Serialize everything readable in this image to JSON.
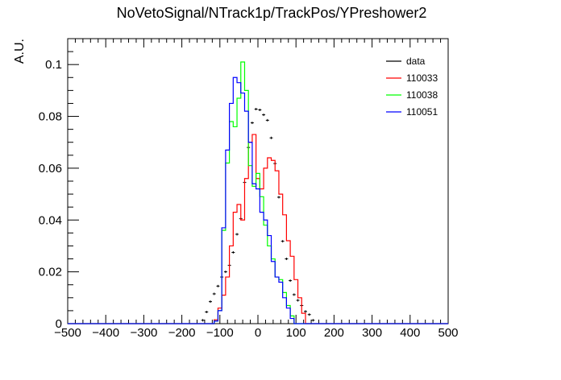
{
  "chart_data": {
    "type": "histogram",
    "title": "NoVetoSignal/NTrack1p/TrackPos/YPreshower2",
    "xlabel": "",
    "ylabel": "A.U.",
    "xlim": [
      -500,
      500
    ],
    "ylim": [
      0,
      0.11
    ],
    "bin_width": 10,
    "x_ticks": [
      "−500",
      "−400",
      "−300",
      "−200",
      "−100",
      "0",
      "100",
      "200",
      "300",
      "400",
      "500"
    ],
    "y_ticks": [
      "0",
      "0.02",
      "0.04",
      "0.06",
      "0.08",
      "0.1"
    ],
    "legend_position": "top-right",
    "grid": false,
    "series": [
      {
        "name": "data",
        "color": "#000000",
        "style": "points",
        "x": [
          -145,
          -135,
          -125,
          -115,
          -105,
          -95,
          -85,
          -75,
          -65,
          -55,
          -45,
          -35,
          -25,
          -15,
          -5,
          5,
          15,
          25,
          35,
          45,
          55,
          65,
          75,
          85,
          95,
          105,
          115,
          125,
          135,
          145
        ],
        "values": [
          0.0013,
          0.0045,
          0.0085,
          0.0115,
          0.0145,
          0.018,
          0.02,
          0.0225,
          0.0275,
          0.0345,
          0.0405,
          0.0545,
          0.068,
          0.0775,
          0.0828,
          0.0825,
          0.0806,
          0.0785,
          0.0717,
          0.0618,
          0.0488,
          0.0318,
          0.025,
          0.0166,
          0.0112,
          0.009,
          0.007,
          0.0047,
          0.0035,
          0.0013
        ]
      },
      {
        "name": "110033",
        "color": "#ff0000",
        "style": "step",
        "x": [
          -110,
          -100,
          -90,
          -80,
          -70,
          -60,
          -50,
          -40,
          -30,
          -20,
          -10,
          0,
          10,
          20,
          30,
          40,
          50,
          60,
          70,
          80,
          90,
          100,
          110,
          120
        ],
        "values": [
          0.0015,
          0.006,
          0.011,
          0.018,
          0.03,
          0.043,
          0.046,
          0.04,
          0.056,
          0.07,
          0.073,
          0.056,
          0.052,
          0.06,
          0.064,
          0.063,
          0.059,
          0.05,
          0.042,
          0.032,
          0.026,
          0.017,
          0.01,
          0.004
        ]
      },
      {
        "name": "110038",
        "color": "#00ff00",
        "style": "step",
        "x": [
          -110,
          -100,
          -90,
          -80,
          -70,
          -60,
          -50,
          -40,
          -30,
          -20,
          -10,
          0,
          10,
          20,
          30,
          40,
          50,
          60,
          70,
          80,
          90
        ],
        "values": [
          0.001,
          0.005,
          0.036,
          0.062,
          0.078,
          0.076,
          0.087,
          0.101,
          0.09,
          0.061,
          0.053,
          0.058,
          0.049,
          0.038,
          0.03,
          0.025,
          0.018,
          0.017,
          0.012,
          0.007,
          0.003
        ]
      },
      {
        "name": "110051",
        "color": "#0000ff",
        "style": "step",
        "x": [
          -110,
          -100,
          -90,
          -80,
          -70,
          -60,
          -50,
          -40,
          -30,
          -20,
          -10,
          0,
          10,
          20,
          30,
          40,
          50,
          60,
          70,
          80,
          90
        ],
        "values": [
          0.001,
          0.005,
          0.037,
          0.067,
          0.085,
          0.095,
          0.093,
          0.089,
          0.082,
          0.07,
          0.054,
          0.052,
          0.043,
          0.04,
          0.034,
          0.024,
          0.018,
          0.016,
          0.01,
          0.006,
          0.002
        ]
      }
    ]
  }
}
